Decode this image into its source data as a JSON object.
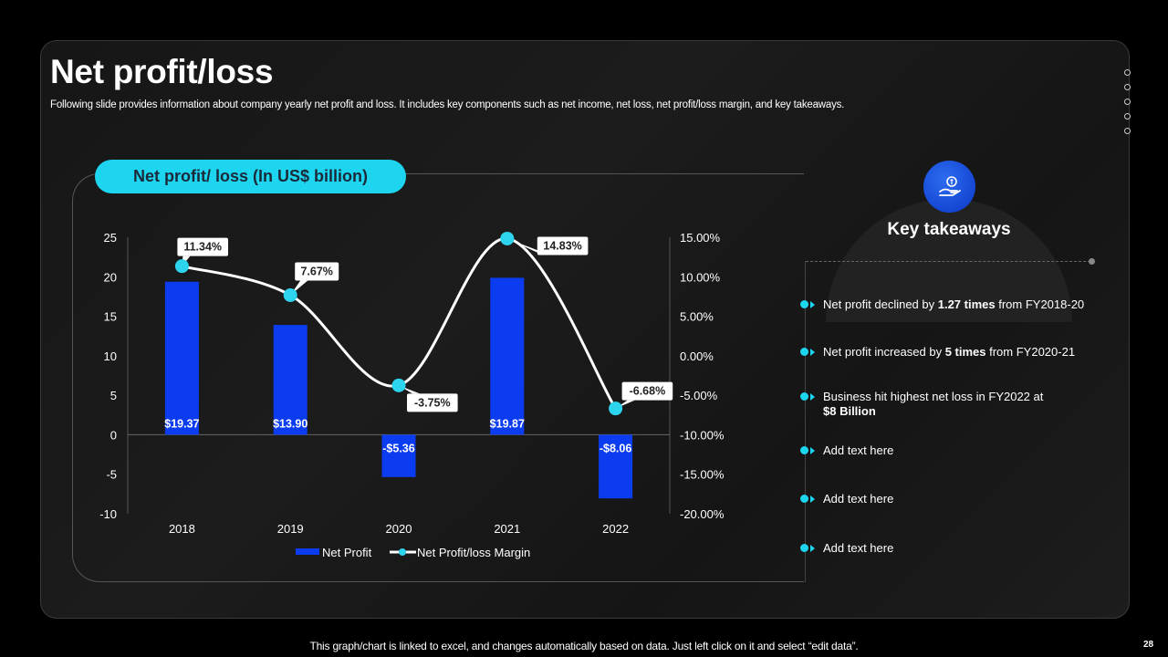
{
  "slide": {
    "title": "Net profit/loss",
    "subtitle": "Following slide provides information about company yearly net profit and loss. It includes key components such as net income, net loss, net profit/loss margin, and key takeaways.",
    "footer": "This graph/chart is linked to excel,  and changes automatically based on data. Just left click on it and select “edit data”.",
    "page_number": "28"
  },
  "chart_header": "Net profit/ loss (In US$ billion)",
  "chart_data": {
    "type": "bar",
    "categories": [
      "2018",
      "2019",
      "2020",
      "2021",
      "2022"
    ],
    "series": [
      {
        "name": "Net Profit",
        "type": "bar",
        "values": [
          19.37,
          13.9,
          -5.36,
          19.87,
          -8.06
        ],
        "labels": [
          "$19.37",
          "$13.90",
          "-$5.36",
          "$19.87",
          "-$8.06"
        ],
        "color": "#0b3cf0"
      },
      {
        "name": "Net Profit/loss Margin",
        "type": "line",
        "values": [
          11.34,
          7.67,
          -3.75,
          14.83,
          -6.68
        ],
        "labels": [
          "11.34%",
          "7.67%",
          "-3.75%",
          "14.83%",
          "-6.68%"
        ],
        "color": "#ffffff",
        "marker_color": "#2dd4ee"
      }
    ],
    "y_left": {
      "min": -10,
      "max": 25,
      "ticks": [
        "25",
        "20",
        "15",
        "10",
        "5",
        "0",
        "-5",
        "-10"
      ]
    },
    "y_right": {
      "min": -20,
      "max": 15,
      "ticks": [
        "15.00%",
        "10.00%",
        "5.00%",
        "0.00%",
        "-5.00%",
        "-10.00%",
        "-15.00%",
        "-20.00%"
      ]
    },
    "legend": [
      "Net Profit",
      "Net Profit/loss Margin"
    ]
  },
  "takeaways": {
    "title": "Key takeaways",
    "items": [
      {
        "pre": "Net profit declined by ",
        "bold": "1.27 times",
        "post": " from FY2018-20"
      },
      {
        "pre": "Net profit increased  by ",
        "bold": "5 times",
        "post": " from FY2020-21"
      },
      {
        "pre": "Business hit highest net loss in FY2022 at",
        "bold": "$8 Billion",
        "post": ""
      },
      {
        "pre": "Add text here",
        "bold": "",
        "post": ""
      },
      {
        "pre": "Add text here",
        "bold": "",
        "post": ""
      },
      {
        "pre": "Add text here",
        "bold": "",
        "post": ""
      }
    ]
  },
  "colors": {
    "accent": "#1dd5ef",
    "bar": "#0b3cf0"
  }
}
